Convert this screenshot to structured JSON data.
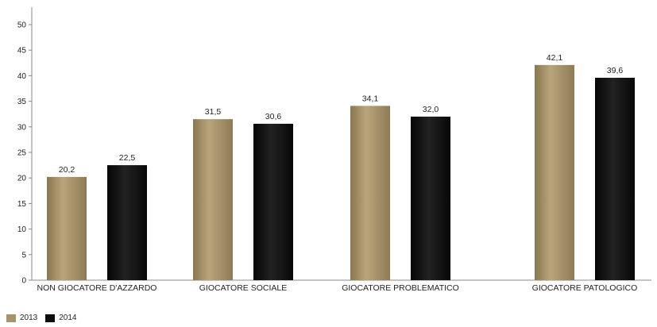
{
  "chart_data": {
    "type": "bar",
    "categories": [
      "NON GIOCATORE D'AZZARDO",
      "GIOCATORE SOCIALE",
      "GIOCATORE PROBLEMATICO",
      "GIOCATORE PATOLOGICO"
    ],
    "series": [
      {
        "name": "2013",
        "values": [
          20.2,
          31.5,
          34.1,
          42.1
        ],
        "labels": [
          "20,2",
          "31,5",
          "34,1",
          "42,1"
        ],
        "color": "#a8946a"
      },
      {
        "name": "2014",
        "values": [
          22.5,
          30.6,
          32.0,
          39.6
        ],
        "labels": [
          "22,5",
          "30,6",
          "32,0",
          "39,6"
        ],
        "color": "#0d0d0d"
      }
    ],
    "ylim": [
      0,
      50
    ],
    "yticks": [
      0,
      5,
      10,
      15,
      20,
      25,
      30,
      35,
      40,
      45,
      50
    ],
    "title": "",
    "xlabel": "",
    "ylabel": "",
    "legend_position": "bottom-left",
    "grid": false
  }
}
